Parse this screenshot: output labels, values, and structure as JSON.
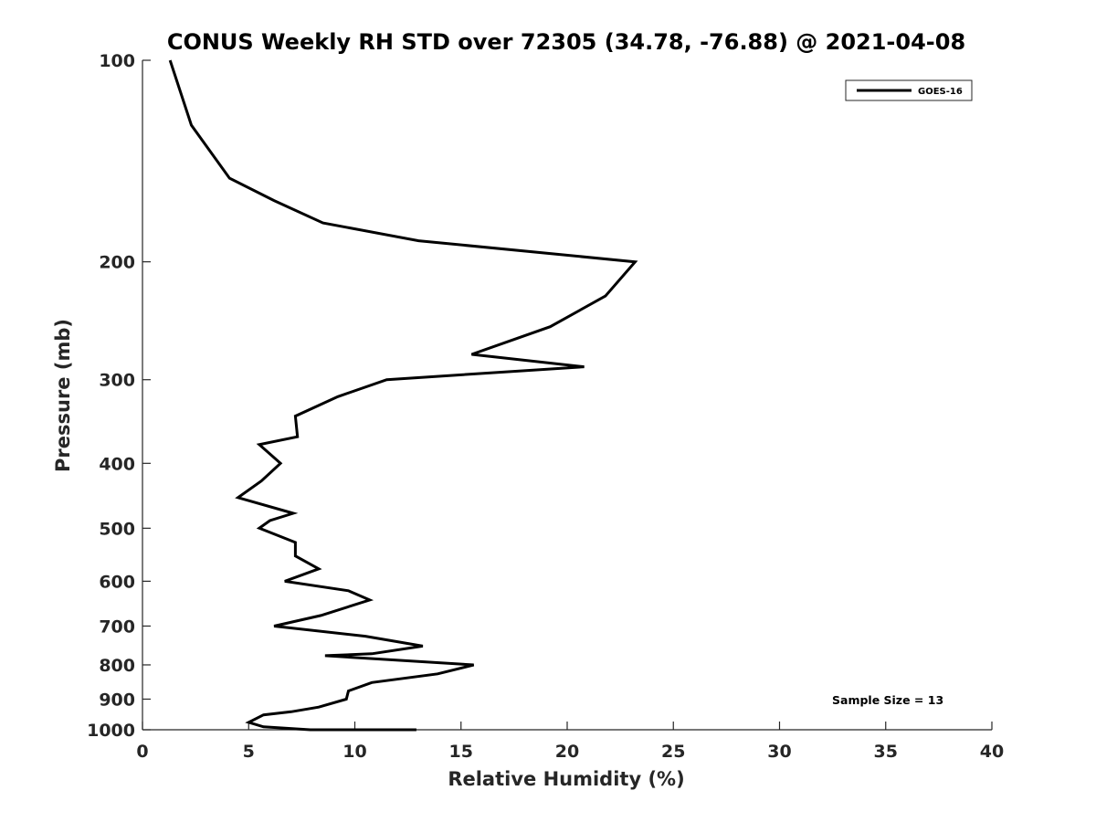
{
  "chart_data": {
    "type": "line",
    "title": "CONUS Weekly RH STD over 72305 (34.78, -76.88) @ 2021-04-08",
    "xlabel": "Relative Humidity (%)",
    "ylabel": "Pressure (mb)",
    "xlim": [
      0,
      40
    ],
    "ylim": [
      100,
      1000
    ],
    "y_scale": "log",
    "y_direction": "reversed",
    "grid": false,
    "legend_position": "top-right",
    "x_ticks": [
      "0",
      "5",
      "10",
      "15",
      "20",
      "25",
      "30",
      "35",
      "40"
    ],
    "y_ticks": [
      "100",
      "200",
      "300",
      "400",
      "500",
      "600",
      "700",
      "800",
      "900",
      "1000"
    ],
    "annotation": "Sample Size = 13",
    "series": [
      {
        "name": "GOES-16",
        "color": "#000000",
        "points": [
          [
            1.3,
            100
          ],
          [
            2.3,
            125
          ],
          [
            4.1,
            150
          ],
          [
            6.2,
            162
          ],
          [
            8.5,
            175
          ],
          [
            13.0,
            186
          ],
          [
            23.2,
            200
          ],
          [
            21.8,
            225
          ],
          [
            19.2,
            250
          ],
          [
            15.5,
            275
          ],
          [
            20.8,
            287
          ],
          [
            11.5,
            300
          ],
          [
            9.2,
            318
          ],
          [
            7.2,
            340
          ],
          [
            7.3,
            365
          ],
          [
            5.5,
            375
          ],
          [
            6.5,
            400
          ],
          [
            5.6,
            425
          ],
          [
            4.5,
            450
          ],
          [
            7.1,
            475
          ],
          [
            6.0,
            487
          ],
          [
            5.5,
            500
          ],
          [
            7.2,
            525
          ],
          [
            7.2,
            550
          ],
          [
            8.3,
            575
          ],
          [
            6.7,
            600
          ],
          [
            9.7,
            620
          ],
          [
            10.7,
            640
          ],
          [
            8.4,
            675
          ],
          [
            6.2,
            700
          ],
          [
            10.5,
            725
          ],
          [
            13.2,
            750
          ],
          [
            10.8,
            770
          ],
          [
            8.6,
            775
          ],
          [
            15.6,
            800
          ],
          [
            13.9,
            825
          ],
          [
            10.8,
            850
          ],
          [
            9.7,
            875
          ],
          [
            9.6,
            900
          ],
          [
            8.3,
            925
          ],
          [
            7.0,
            940
          ],
          [
            5.7,
            950
          ],
          [
            5.0,
            975
          ],
          [
            5.7,
            990
          ],
          [
            7.9,
            1000
          ],
          [
            12.9,
            1000
          ]
        ]
      }
    ]
  }
}
